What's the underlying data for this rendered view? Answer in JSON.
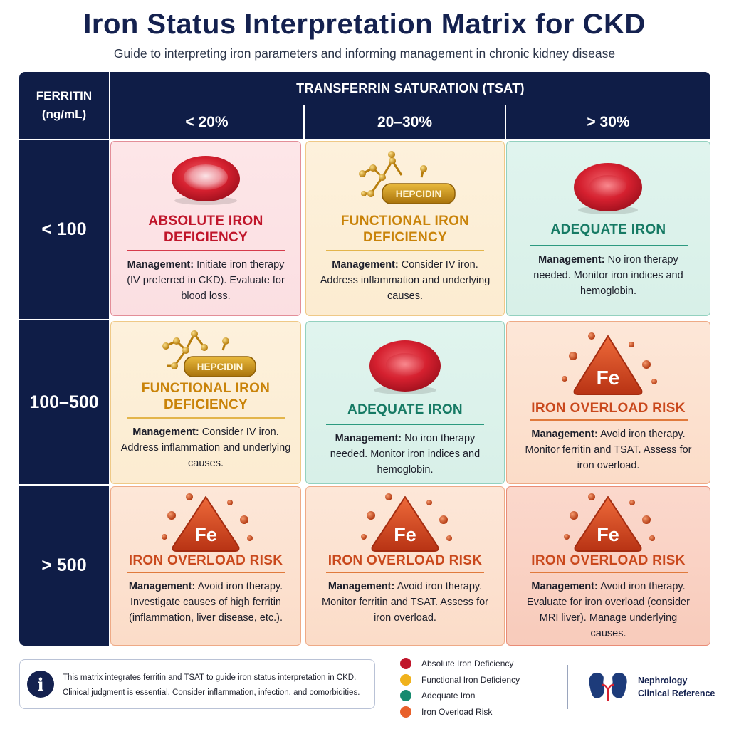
{
  "title": "Iron Status Interpretation Matrix for CKD",
  "subtitle": "Guide to interpreting iron parameters and informing management in chronic kidney disease",
  "header": {
    "ferritin_line1": "FERRITIN",
    "ferritin_line2": "(ng/mL)",
    "tsat": "TRANSFERRIN SATURATION (TSAT)",
    "columns": [
      "< 20%",
      "20–30%",
      "> 30%"
    ]
  },
  "rows": [
    "< 100",
    "100–500",
    "> 500"
  ],
  "hepcidin_label": "HEPCIDIN",
  "fe_label": "Fe",
  "management_prefix": "Management:",
  "cells": [
    {
      "title": "ABSOLUTE IRON DEFICIENCY",
      "management": "Initiate iron therapy (IV preferred in CKD). Evaluate for blood loss."
    },
    {
      "title": "FUNCTIONAL IRON DEFICIENCY",
      "management": "Consider IV iron. Address inflammation and underlying causes."
    },
    {
      "title": "ADEQUATE IRON",
      "management": "No iron therapy needed. Monitor iron indices and hemoglobin."
    },
    {
      "title": "FUNCTIONAL IRON DEFICIENCY",
      "management": "Consider IV iron. Address inflammation and underlying causes."
    },
    {
      "title": "ADEQUATE IRON",
      "management": "No iron therapy needed. Monitor iron indices and hemoglobin."
    },
    {
      "title": "IRON OVERLOAD RISK",
      "management": "Avoid iron therapy. Monitor ferritin and TSAT. Assess for iron overload."
    },
    {
      "title": "IRON OVERLOAD RISK",
      "management": "Avoid iron therapy. Investigate causes of high ferritin (inflammation, liver disease, etc.)."
    },
    {
      "title": "IRON OVERLOAD RISK",
      "management": "Avoid iron therapy. Monitor ferritin and TSAT. Assess for iron overload."
    },
    {
      "title": "IRON OVERLOAD RISK",
      "management": "Avoid iron therapy. Evaluate for iron overload (consider MRI liver). Manage underlying causes."
    }
  ],
  "info": {
    "icon": "info-icon",
    "line1": "This matrix integrates ferritin and TSAT to guide iron status interpretation in CKD.",
    "line2": "Clinical judgment is essential. Consider inflammation, infection, and comorbidities."
  },
  "legend": [
    {
      "label": "Absolute Iron Deficiency",
      "color": "#c0162b"
    },
    {
      "label": "Functional Iron Deficiency",
      "color": "#f0b21c"
    },
    {
      "label": "Adequate Iron",
      "color": "#168a6e"
    },
    {
      "label": "Iron Overload Risk",
      "color": "#e8602a"
    }
  ],
  "brand": {
    "icon": "kidney-icon",
    "line1": "Nephrology",
    "line2": "Clinical Reference"
  },
  "colors": {
    "navy": "#0f1d47",
    "absolute": "#c0162b",
    "functional": "#c98309",
    "adequate": "#167a64",
    "overload": "#c9481c"
  }
}
